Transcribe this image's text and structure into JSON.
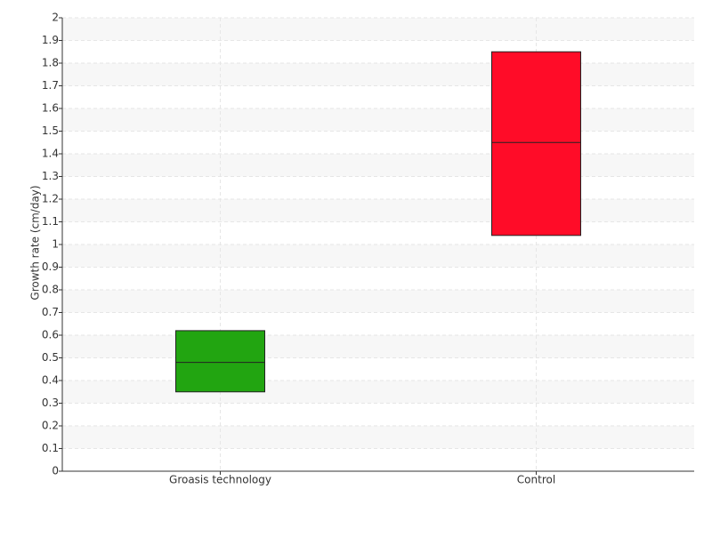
{
  "chart_data": {
    "type": "box",
    "y_label": "Growth rate (cm/day)",
    "categories": [
      "Groasis technology",
      "Control"
    ],
    "q1": [
      0.35,
      1.04
    ],
    "median": [
      0.48,
      1.45
    ],
    "q3": [
      0.62,
      1.85
    ],
    "colors": [
      "#22a511",
      "#ff0c28"
    ],
    "ylim": [
      0,
      2
    ],
    "yticks": [
      0,
      0.1,
      0.2,
      0.3,
      0.4,
      0.5,
      0.6,
      0.7,
      0.8,
      0.9,
      1,
      1.1,
      1.2,
      1.3,
      1.4,
      1.5,
      1.6,
      1.7,
      1.8,
      1.9,
      2
    ],
    "grid": true
  }
}
